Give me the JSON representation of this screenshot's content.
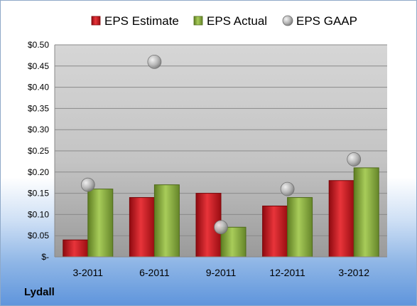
{
  "company": "Lydall",
  "chart_data": {
    "type": "bar",
    "categories": [
      "3-2011",
      "6-2011",
      "9-2011",
      "12-2011",
      "3-2012"
    ],
    "series": [
      {
        "name": "EPS Estimate",
        "kind": "bar",
        "color": "#c8161d",
        "values": [
          0.04,
          0.14,
          0.15,
          0.12,
          0.18
        ]
      },
      {
        "name": "EPS Actual",
        "kind": "bar",
        "color": "#8db040",
        "values": [
          0.16,
          0.17,
          0.07,
          0.14,
          0.21
        ]
      },
      {
        "name": "EPS GAAP",
        "kind": "marker",
        "color": "#a8a8a8",
        "values": [
          0.17,
          0.46,
          0.07,
          0.16,
          0.23
        ]
      }
    ],
    "ylim": [
      0,
      0.5
    ],
    "yticks": [
      0,
      0.05,
      0.1,
      0.15,
      0.2,
      0.25,
      0.3,
      0.35,
      0.4,
      0.45,
      0.5
    ],
    "ytick_labels": [
      "$-",
      "$0.05",
      "$0.10",
      "$0.15",
      "$0.20",
      "$0.25",
      "$0.30",
      "$0.35",
      "$0.40",
      "$0.45",
      "$0.50"
    ],
    "grid": true,
    "legend_position": "top"
  }
}
